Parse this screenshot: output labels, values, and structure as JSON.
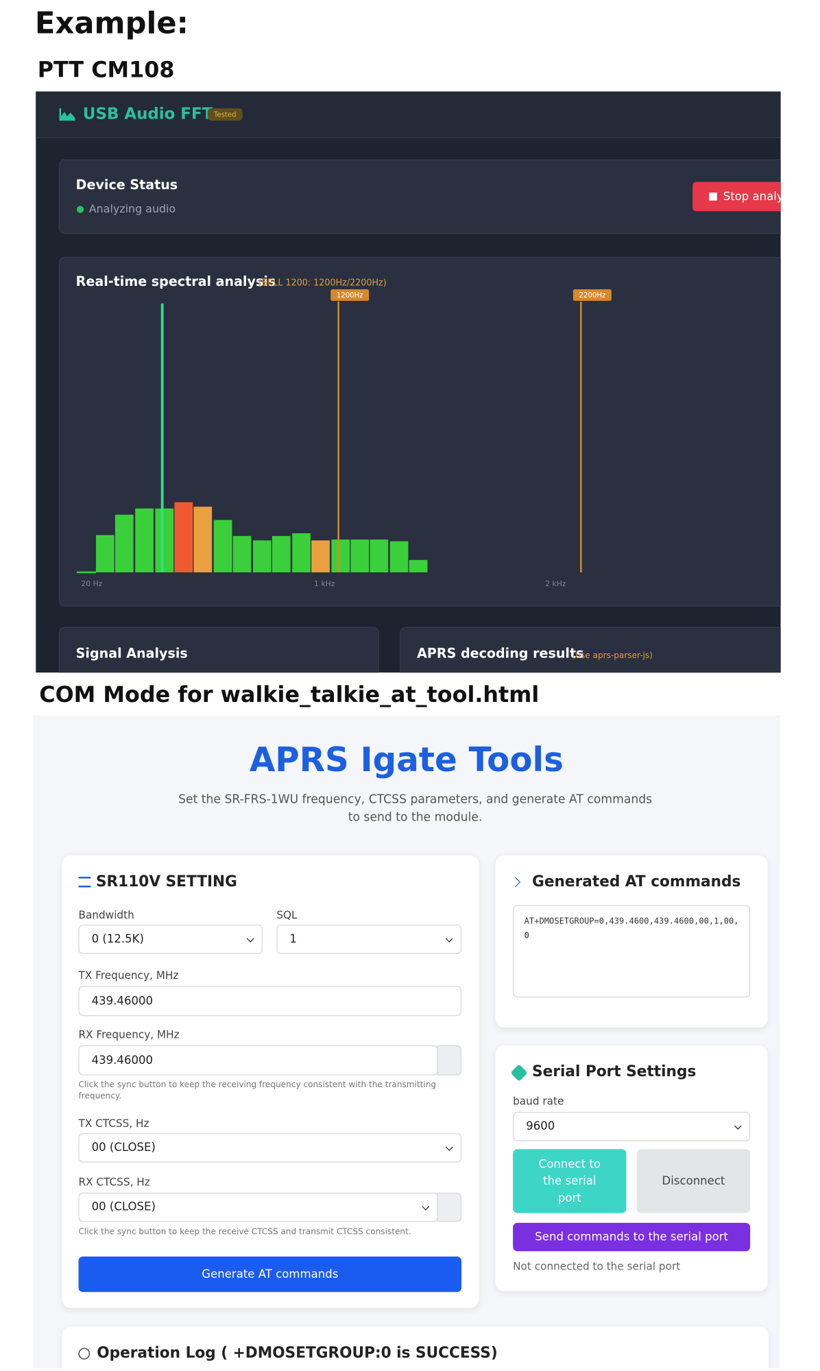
{
  "heading": "Example:",
  "section1": {
    "label": "PTT CM108",
    "app_title": "USB Audio FFT",
    "badge": "Tested",
    "device_status": {
      "title": "Device Status",
      "status": "Analyzing audio",
      "button": "Stop analyz"
    },
    "spectrum": {
      "title": "Real-time spectral analysis",
      "subtitle": "(BELL 1200: 1200Hz/2200Hz)",
      "markers": [
        "1200Hz",
        "2200Hz"
      ],
      "axis_labels": [
        "20 Hz",
        "1 kHz",
        "2 kHz"
      ]
    },
    "signal_analysis": {
      "title": "Signal Analysis"
    },
    "aprs": {
      "title": "APRS decoding results",
      "note": "(use aprs-parser-js)"
    }
  },
  "section2": {
    "label": "COM Mode for walkie_talkie_at_tool.html",
    "title": "APRS Igate Tools",
    "description": "Set the SR-FRS-1WU frequency, CTCSS parameters, and generate AT commands to send to the module.",
    "settings": {
      "title": "SR110V SETTING",
      "bandwidth_label": "Bandwidth",
      "bandwidth": "0 (12.5K)",
      "sql_label": "SQL",
      "sql": "1",
      "tx_freq_label": "TX Frequency, MHz",
      "tx_freq": "439.46000",
      "rx_freq_label": "RX Frequency, MHz",
      "rx_freq": "439.46000",
      "rx_freq_hint": "Click the sync button to keep the receiving frequency consistent with the transmitting frequency.",
      "tx_ctcss_label": "TX CTCSS, Hz",
      "tx_ctcss": "00 (CLOSE)",
      "rx_ctcss_label": "RX CTCSS, Hz",
      "rx_ctcss": "00 (CLOSE)",
      "rx_ctcss_hint": "Click the sync button to keep the receive CTCSS and transmit CTCSS consistent.",
      "button": "Generate AT commands"
    },
    "generated": {
      "title": "Generated AT commands",
      "command": "AT+DMOSETGROUP=0,439.4600,439.4600,00,1,00,0"
    },
    "serial": {
      "title": "Serial Port Settings",
      "baud_label": "baud rate",
      "baud": "9600",
      "connect": "Connect to the serial port",
      "disconnect": "Disconnect",
      "send": "Send commands to the serial port",
      "status": "Not connected to the serial port"
    },
    "log": {
      "title": "Operation Log ( +DMOSETGROUP:0 is SUCCESS)"
    }
  }
}
